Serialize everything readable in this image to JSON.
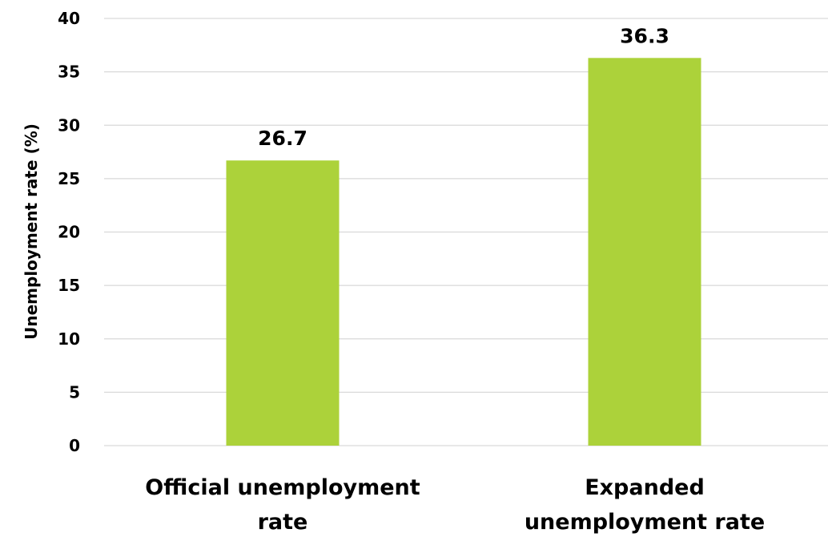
{
  "chart_data": {
    "type": "bar",
    "categories": [
      "Official unemployment rate",
      "Expanded unemployment rate"
    ],
    "category_lines": [
      [
        "Official unemployment",
        "rate"
      ],
      [
        "Expanded",
        "unemployment rate"
      ]
    ],
    "values": [
      26.7,
      36.3
    ],
    "data_labels": [
      "26.7",
      "36.3"
    ],
    "title": "",
    "xlabel": "",
    "ylabel": "Unemployment rate (%)",
    "ylim": [
      0,
      40
    ],
    "yticks": [
      0,
      5,
      10,
      15,
      20,
      25,
      30,
      35,
      40
    ],
    "grid": true,
    "legend": "none",
    "bar_color": "#acd23a"
  }
}
